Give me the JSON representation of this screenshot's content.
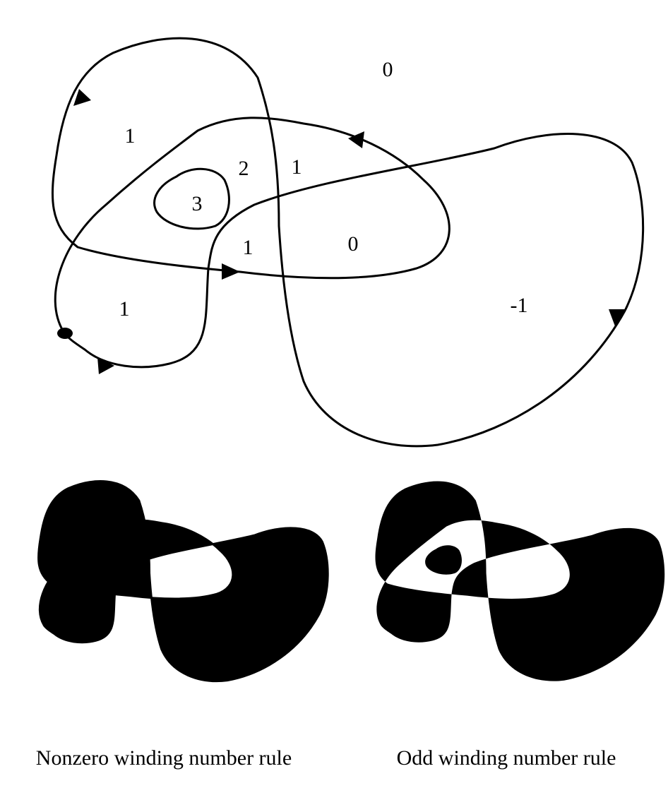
{
  "top_diagram": {
    "region_labels": {
      "outside": "0",
      "upper_left_lobe": "1",
      "overlap_two": "2",
      "right_of_two": "1",
      "inner_loop": "3",
      "center": "1",
      "center_right": "0",
      "lower_left": "1",
      "right_lobe": "-1"
    }
  },
  "captions": {
    "nonzero": "Nonzero winding number rule",
    "odd": "Odd winding number rule"
  },
  "colors": {
    "ink": "#000000",
    "paper": "#ffffff"
  }
}
